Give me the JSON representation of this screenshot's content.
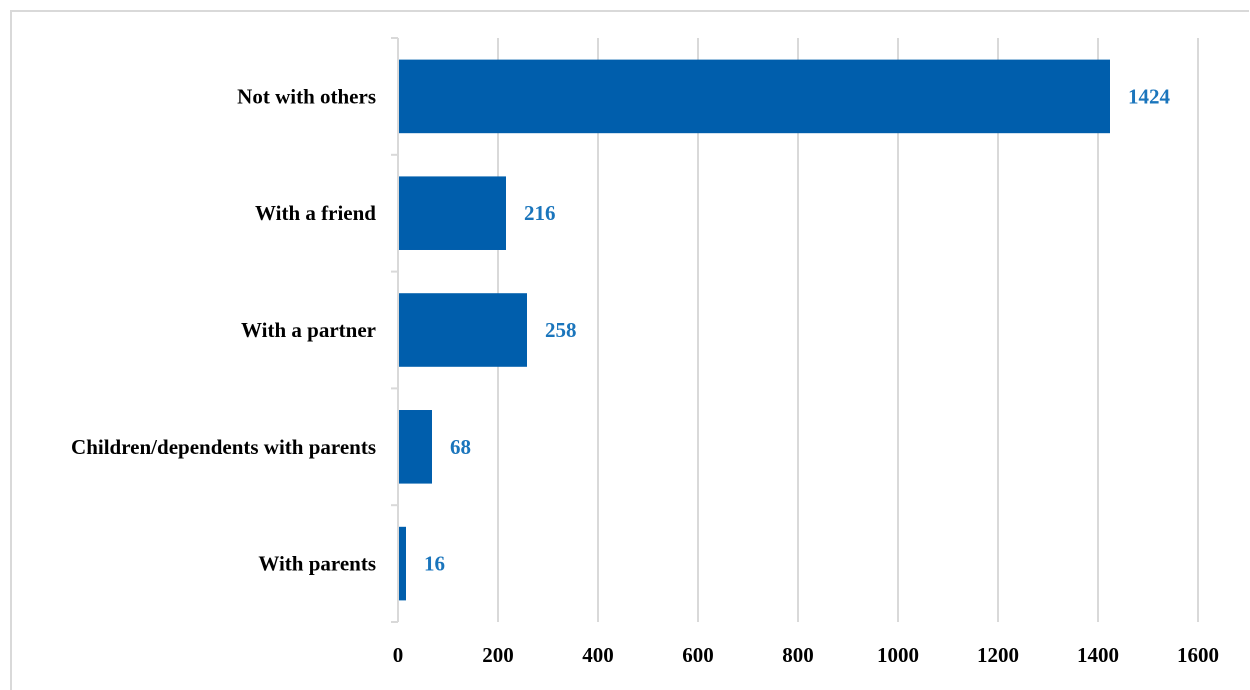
{
  "chart_data": {
    "type": "bar",
    "orientation": "horizontal",
    "categories": [
      "Not with others",
      "With a friend",
      "With a partner",
      "Children/dependents with parents",
      "With parents"
    ],
    "values": [
      1424,
      216,
      258,
      68,
      16
    ],
    "data_labels": [
      "1424",
      "216",
      "258",
      "68",
      "16"
    ],
    "x_ticks": [
      "0",
      "200",
      "400",
      "600",
      "800",
      "1000",
      "1200",
      "1400",
      "1600"
    ],
    "xlim": [
      0,
      1600
    ],
    "title": "",
    "xlabel": "",
    "ylabel": "",
    "grid": true,
    "legend": "none",
    "colors": {
      "bar": "#005eac",
      "data_label": "#1a75bc",
      "grid": "#d9d9d9"
    }
  }
}
